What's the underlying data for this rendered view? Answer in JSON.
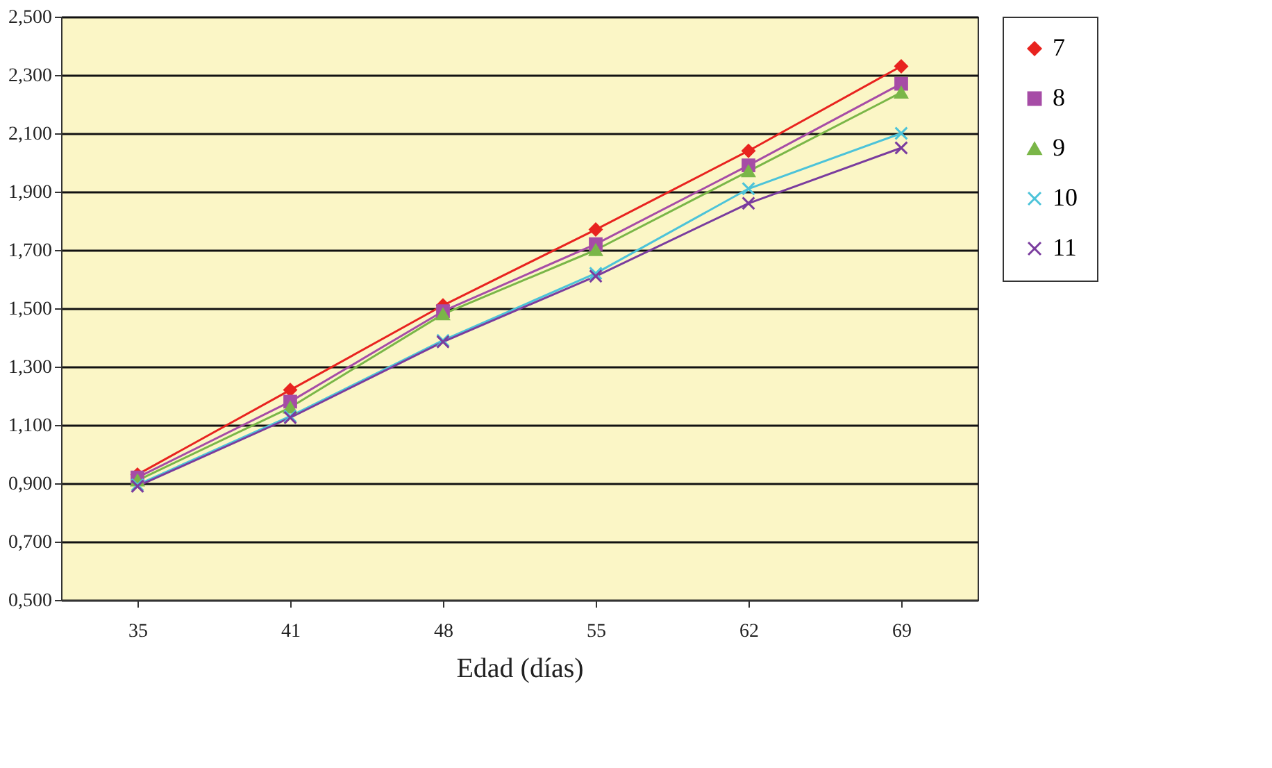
{
  "chart_data": {
    "type": "line",
    "xlabel": "Edad (días)",
    "categories": [
      "35",
      "41",
      "48",
      "55",
      "62",
      "69"
    ],
    "series": [
      {
        "name": "7",
        "color": "#e8231f",
        "marker": "diamond",
        "values": [
          0.93,
          1.22,
          1.51,
          1.77,
          2.04,
          2.33
        ]
      },
      {
        "name": "8",
        "color": "#a64ca6",
        "marker": "square",
        "values": [
          0.92,
          1.18,
          1.49,
          1.72,
          1.99,
          2.27
        ]
      },
      {
        "name": "9",
        "color": "#7ab648",
        "marker": "triangle",
        "values": [
          0.91,
          1.16,
          1.48,
          1.7,
          1.97,
          2.24
        ]
      },
      {
        "name": "10",
        "color": "#4cc3d9",
        "marker": "cross",
        "values": [
          0.895,
          1.13,
          1.39,
          1.62,
          1.91,
          2.1
        ]
      },
      {
        "name": "11",
        "color": "#7a3c9e",
        "marker": "cross",
        "values": [
          0.89,
          1.125,
          1.385,
          1.61,
          1.86,
          2.05
        ]
      }
    ],
    "ylim": [
      0.5,
      2.5
    ],
    "yticks": [
      {
        "value": 0.5,
        "label": "0,500"
      },
      {
        "value": 0.7,
        "label": "0,700"
      },
      {
        "value": 0.9,
        "label": "0,900"
      },
      {
        "value": 1.1,
        "label": "1,100"
      },
      {
        "value": 1.3,
        "label": "1,300"
      },
      {
        "value": 1.5,
        "label": "1,500"
      },
      {
        "value": 1.7,
        "label": "1,700"
      },
      {
        "value": 1.9,
        "label": "1,900"
      },
      {
        "value": 2.1,
        "label": "2,100"
      },
      {
        "value": 2.3,
        "label": "2,300"
      },
      {
        "value": 2.5,
        "label": "2,500"
      }
    ],
    "grid": "y",
    "legend": "right",
    "line_style": "solid"
  }
}
